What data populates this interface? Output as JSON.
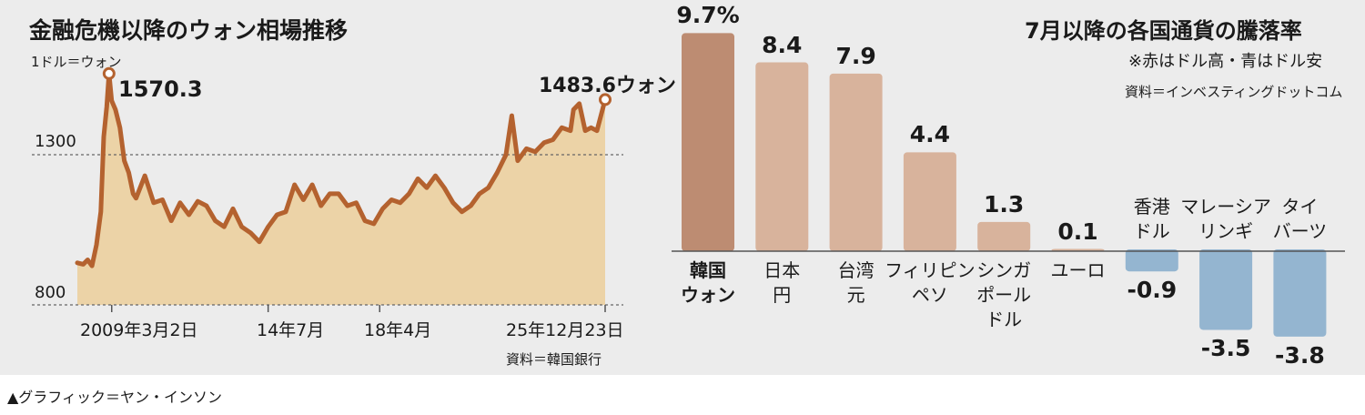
{
  "caption": "▲グラフィック＝ヤン・インソン",
  "colors": {
    "panel_bg": "#ececec",
    "line": "#b4622f",
    "area": "#ecd3a7",
    "bar_highlight": "#bd8c72",
    "bar_positive": "#d8b39c",
    "bar_negative": "#94b5d0"
  },
  "left_chart": {
    "title": "金融危機以降のウォン相場推移",
    "unit": "1ドル＝ウォン",
    "source": "資料＝韓国銀行",
    "peak_label": "1570.3",
    "end_label": "1483.6ウォン"
  },
  "right_chart": {
    "title": "7月以降の各国通貨の騰落率",
    "note": "※赤はドル高・青はドル安",
    "source": "資料＝インベスティングドットコム"
  },
  "chart_data": [
    {
      "type": "area",
      "title": "金融危機以降のウォン相場推移",
      "unit": "1ドル＝ウォン",
      "ylim": [
        800,
        1650
      ],
      "yticks": [
        1300,
        800
      ],
      "xticks": [
        "2009年3月2日",
        "14年7月",
        "18年4月",
        "25年12月23日"
      ],
      "x": [
        2008.0,
        2008.2,
        2008.35,
        2008.5,
        2008.65,
        2008.8,
        2008.9,
        2009.0,
        2009.08,
        2009.17,
        2009.3,
        2009.45,
        2009.6,
        2009.75,
        2009.9,
        2010.0,
        2010.3,
        2010.6,
        2010.9,
        2011.2,
        2011.5,
        2011.8,
        2012.1,
        2012.4,
        2012.7,
        2013.0,
        2013.3,
        2013.6,
        2013.9,
        2014.2,
        2014.5,
        2014.8,
        2015.1,
        2015.4,
        2015.7,
        2016.0,
        2016.3,
        2016.6,
        2016.9,
        2017.2,
        2017.5,
        2017.8,
        2018.1,
        2018.4,
        2018.7,
        2019.0,
        2019.3,
        2019.6,
        2019.9,
        2020.2,
        2020.5,
        2020.8,
        2021.1,
        2021.4,
        2021.7,
        2022.0,
        2022.3,
        2022.6,
        2022.8,
        2023.0,
        2023.3,
        2023.6,
        2023.9,
        2024.2,
        2024.5,
        2024.8,
        2024.9,
        2025.1,
        2025.3,
        2025.5,
        2025.7,
        2025.98
      ],
      "values": [
        940,
        935,
        950,
        930,
        1000,
        1110,
        1360,
        1460,
        1570.3,
        1480,
        1450,
        1390,
        1280,
        1240,
        1170,
        1155,
        1230,
        1140,
        1150,
        1080,
        1140,
        1100,
        1145,
        1130,
        1080,
        1060,
        1120,
        1060,
        1040,
        1010,
        1060,
        1100,
        1110,
        1200,
        1150,
        1200,
        1130,
        1170,
        1170,
        1130,
        1140,
        1080,
        1070,
        1120,
        1150,
        1140,
        1170,
        1220,
        1190,
        1230,
        1190,
        1140,
        1110,
        1130,
        1170,
        1190,
        1240,
        1300,
        1430,
        1280,
        1320,
        1310,
        1340,
        1350,
        1390,
        1380,
        1450,
        1470,
        1380,
        1390,
        1380,
        1483.6
      ]
    },
    {
      "type": "bar",
      "title": "7月以降の各国通貨の騰落率",
      "categories": [
        "韓国ウォン",
        "日本円",
        "台湾元",
        "フィリピンペソ",
        "シンガポールドル",
        "ユーロ",
        "香港ドル",
        "マレーシアリンギ",
        "タイバーツ"
      ],
      "category_lines": [
        [
          "韓国",
          "ウォン"
        ],
        [
          "日本",
          "円"
        ],
        [
          "台湾",
          "元"
        ],
        [
          "フィリピン",
          "ペソ"
        ],
        [
          "シンガ",
          "ポール",
          "ドル"
        ],
        [
          "ユーロ"
        ],
        [
          "香港",
          "ドル"
        ],
        [
          "マレーシア",
          "リンギ"
        ],
        [
          "タイ",
          "バーツ"
        ]
      ],
      "values": [
        9.7,
        8.4,
        7.9,
        4.4,
        1.3,
        0.1,
        -0.9,
        -3.5,
        -3.8
      ],
      "value_labels": [
        "9.7%",
        "8.4",
        "7.9",
        "4.4",
        "1.3",
        "0.1",
        "-0.9",
        "-3.5",
        "-3.8"
      ]
    }
  ]
}
